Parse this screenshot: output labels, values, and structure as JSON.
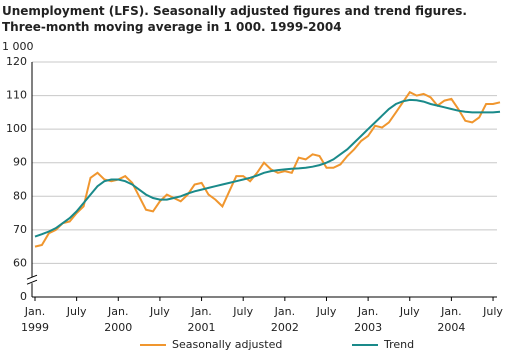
{
  "chart_data": {
    "type": "line",
    "title": "Unemployment (LFS). Seasonally adjusted figures and trend figures.",
    "subtitle": "Three-month moving average in 1 000. 1999-2004",
    "y_label": "1 000",
    "categories": [
      "Jan.",
      null,
      null,
      null,
      null,
      null,
      "July",
      null,
      null,
      null,
      null,
      null,
      "Jan.",
      null,
      null,
      null,
      null,
      null,
      "July",
      null,
      null,
      null,
      null,
      null,
      "Jan.",
      null,
      null,
      null,
      null,
      null,
      "July",
      null,
      null,
      null,
      null,
      null,
      "Jan.",
      null,
      null,
      null,
      null,
      null,
      "July",
      null,
      null,
      null,
      null,
      null,
      "Jan.",
      null,
      null,
      null,
      null,
      null,
      "July",
      null,
      null,
      null,
      null,
      null,
      "Jan.",
      null,
      null,
      null,
      null,
      null,
      "July",
      null
    ],
    "years": [
      "1999",
      null,
      null,
      null,
      null,
      null,
      null,
      null,
      null,
      null,
      null,
      null,
      "2000",
      null,
      null,
      null,
      null,
      null,
      null,
      null,
      null,
      null,
      null,
      null,
      "2001",
      null,
      null,
      null,
      null,
      null,
      null,
      null,
      null,
      null,
      null,
      null,
      "2002",
      null,
      null,
      null,
      null,
      null,
      null,
      null,
      null,
      null,
      null,
      null,
      "2003",
      null,
      null,
      null,
      null,
      null,
      null,
      null,
      null,
      null,
      null,
      null,
      "2004",
      null,
      null,
      null,
      null,
      null,
      null,
      null
    ],
    "series": [
      {
        "name": "Seasonally adjusted",
        "color": "#f0962e",
        "values": [
          65,
          65.5,
          69,
          70,
          72,
          72.5,
          75,
          77,
          85.5,
          87,
          85,
          84.5,
          85,
          86,
          84,
          80,
          76,
          75.5,
          78.5,
          80.5,
          79.5,
          78.5,
          80.5,
          83.5,
          84,
          80.5,
          79,
          77,
          81.5,
          86,
          86,
          84.5,
          87,
          90,
          88,
          87,
          87.5,
          87,
          91.5,
          91,
          92.5,
          92,
          88.5,
          88.5,
          89.5,
          92,
          94,
          96.5,
          98,
          101,
          100.5,
          102,
          105,
          108,
          111,
          110,
          110.5,
          109.5,
          107,
          108.5,
          109,
          106,
          102.5,
          102,
          103.5,
          107.5,
          107.5,
          108
        ]
      },
      {
        "name": "Trend",
        "color": "#1a8a8a",
        "values": [
          68,
          68.7,
          69.5,
          70.5,
          72,
          73.5,
          75.5,
          78,
          80.5,
          83,
          84.5,
          85,
          85,
          84.5,
          83.5,
          82,
          80.5,
          79.5,
          79,
          79,
          79.5,
          80,
          80.8,
          81.5,
          82,
          82.5,
          83,
          83.5,
          84,
          84.5,
          85,
          85.5,
          86.2,
          87,
          87.5,
          87.8,
          88,
          88.2,
          88.3,
          88.5,
          88.8,
          89.3,
          90,
          91,
          92.5,
          94,
          96,
          98,
          100,
          102,
          104,
          106,
          107.5,
          108.3,
          108.7,
          108.6,
          108.2,
          107.5,
          107,
          106.5,
          106,
          105.5,
          105.2,
          105,
          105,
          105,
          105,
          105.2
        ]
      }
    ],
    "ylim": [
      0,
      120
    ],
    "yticks": [
      0,
      60,
      70,
      80,
      90,
      100,
      110,
      120
    ],
    "axis_break": true,
    "grid": true,
    "legend": "bottom"
  }
}
